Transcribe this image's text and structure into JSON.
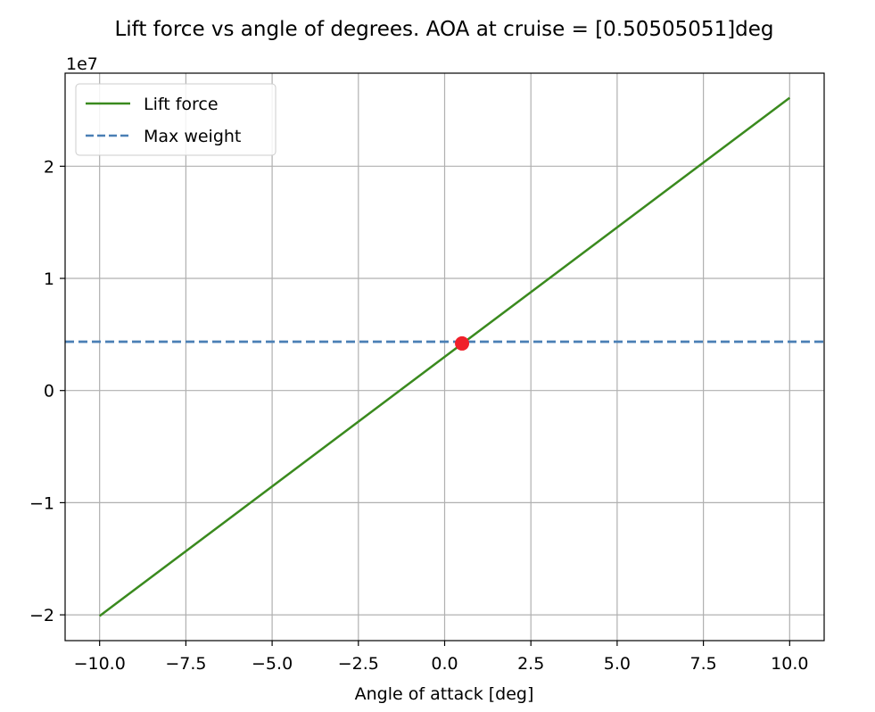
{
  "chart_data": {
    "type": "line",
    "title": "Lift force vs angle of degrees. AOA at cruise = [0.50505051]deg",
    "xlabel": "Angle of attack [deg]",
    "ylabel": "",
    "y_offset_label": "1e7",
    "y_multiplier": 10000000,
    "xlim": [
      -11,
      11
    ],
    "ylim": [
      -2.23,
      2.83
    ],
    "x_ticks": [
      -10,
      -7.5,
      -5,
      -2.5,
      0,
      2.5,
      5,
      7.5,
      10
    ],
    "x_tick_labels": [
      "−10.0",
      "−7.5",
      "−5.0",
      "−2.5",
      "0.0",
      "2.5",
      "5.0",
      "7.5",
      "10.0"
    ],
    "y_ticks": [
      -2,
      -1,
      0,
      1,
      2
    ],
    "y_tick_labels": [
      "−2",
      "−1",
      "0",
      "1",
      "2"
    ],
    "grid": true,
    "legend_position": "upper-left",
    "series": [
      {
        "name": "Lift force",
        "style": "solid",
        "color": "#3a8a1e",
        "x": [
          -10,
          10
        ],
        "y": [
          -2.01,
          2.61
        ]
      },
      {
        "name": "Max weight",
        "style": "dashed",
        "color": "#4a7fb5",
        "y_const": 0.435
      }
    ],
    "marker": {
      "x": 0.50505051,
      "y": 0.42,
      "color": "#f0202a"
    }
  }
}
